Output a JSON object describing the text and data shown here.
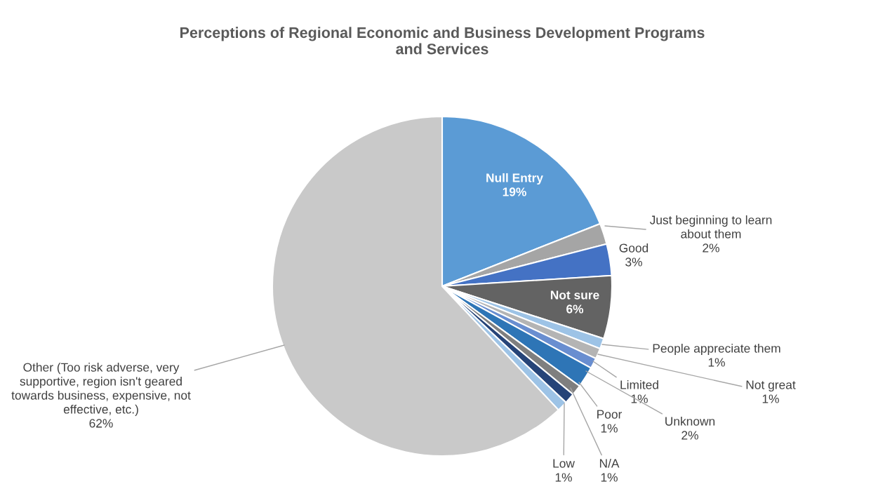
{
  "chart_data": {
    "type": "pie",
    "title": "Perceptions of Regional Economic and Business Development Programs\nand Services",
    "categories": [
      "Null Entry",
      "Just beginning to learn\nabout them",
      "Good",
      "Not sure",
      "People appreciate them",
      "Not great",
      "Limited",
      "Unknown",
      "Poor",
      "N/A",
      "Low",
      "Other (Too risk adverse, very\nsupportive, region isn't geared\ntowards business, expensive, not\neffective, etc.)"
    ],
    "values": [
      19,
      2,
      3,
      6,
      1,
      1,
      1,
      2,
      1,
      1,
      1,
      62
    ],
    "value_labels": [
      "19%",
      "2%",
      "3%",
      "6%",
      "1%",
      "1%",
      "1%",
      "2%",
      "1%",
      "1%",
      "1%",
      "62%"
    ],
    "colors": [
      "#5b9bd5",
      "#a5a5a5",
      "#4472c4",
      "#636363",
      "#9dc3e6",
      "#b4b4b4",
      "#698ed0",
      "#2e75b6",
      "#7f7f7f",
      "#264478",
      "#9dc3e6",
      "#c9c9c9"
    ]
  }
}
